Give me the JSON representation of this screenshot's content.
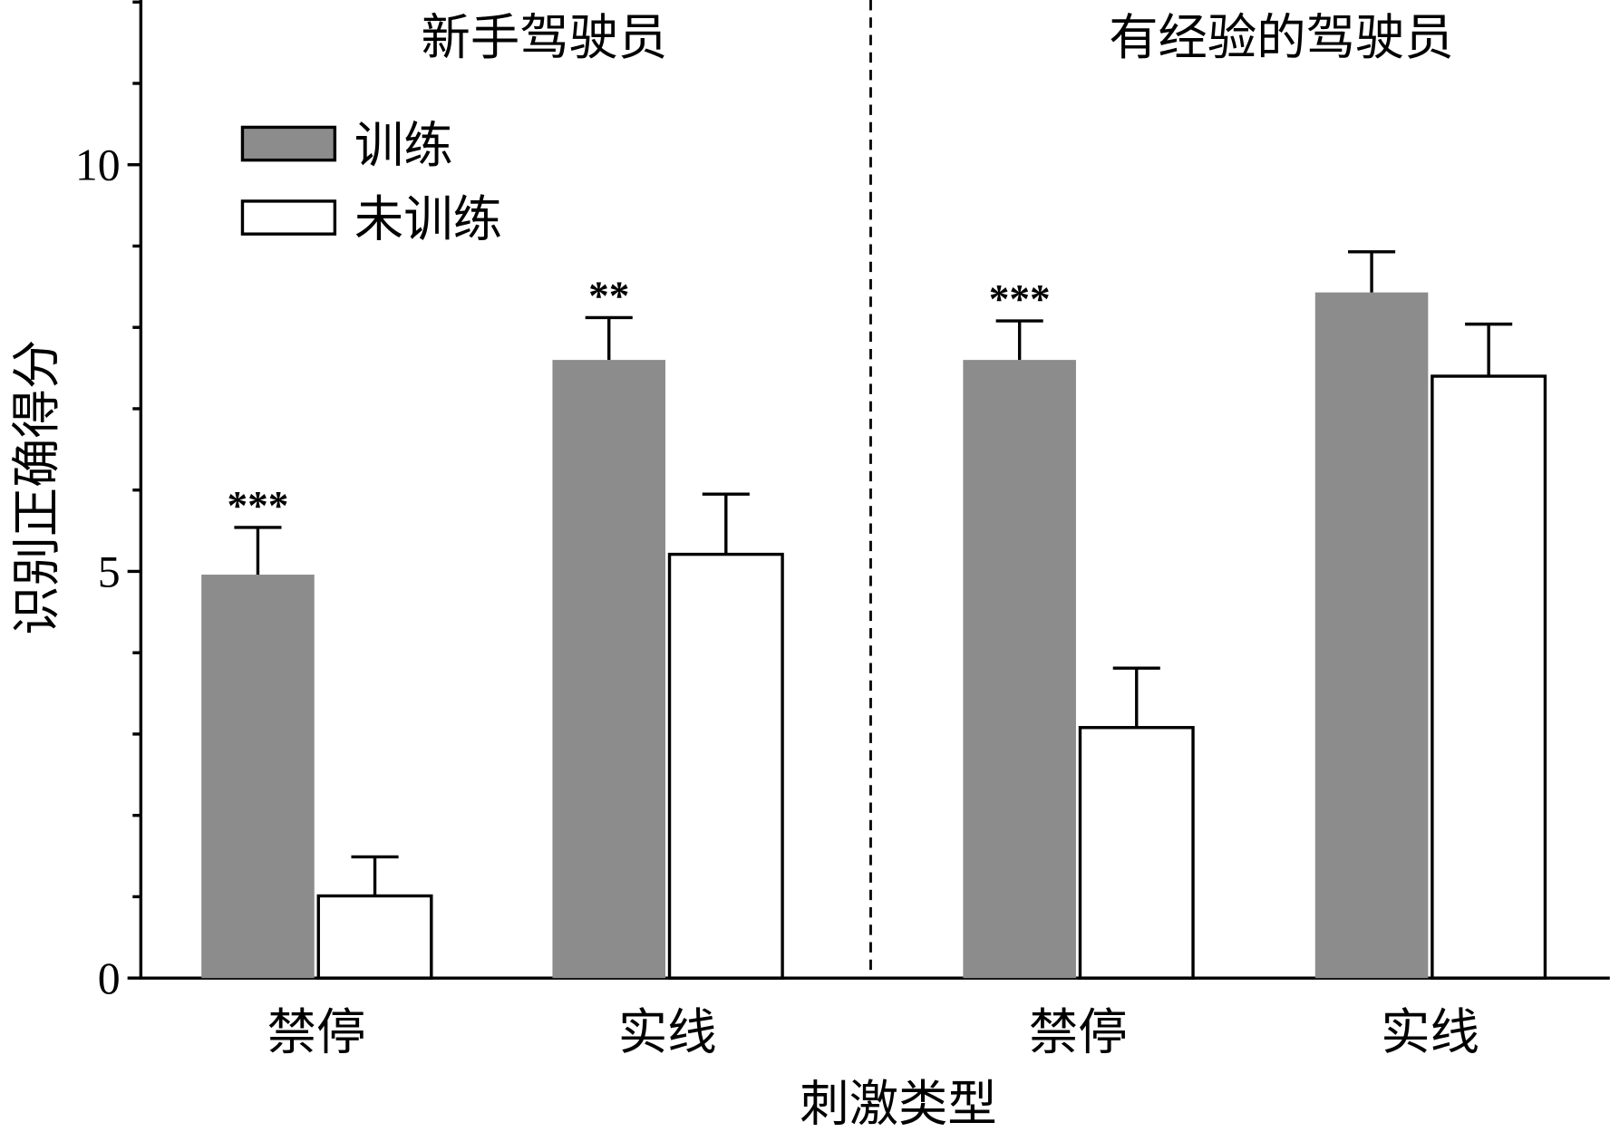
{
  "chart_data": {
    "type": "bar",
    "title": "",
    "xlabel": "刺激类型",
    "ylabel": "识别正确得分",
    "ylim": [
      0,
      12
    ],
    "yticks_major": [
      0,
      5,
      10
    ],
    "yticks_minor_step": 1,
    "grid": false,
    "legend_position": "top-left",
    "colors": {
      "训练": "#8c8c8c",
      "未训练": "#ffffff"
    },
    "groups": [
      {
        "title": "新手驾驶员",
        "categories": [
          "禁停",
          "实线"
        ],
        "series": [
          {
            "name": "训练",
            "values": [
              4.96,
              7.6
            ],
            "errors": [
              0.58,
              0.52
            ]
          },
          {
            "name": "未训练",
            "values": [
              1.01,
              5.21
            ],
            "errors": [
              0.48,
              0.74
            ]
          }
        ],
        "significance": [
          "***",
          "**"
        ]
      },
      {
        "title": "有经验的驾驶员",
        "categories": [
          "禁停",
          "实线"
        ],
        "series": [
          {
            "name": "训练",
            "values": [
              7.6,
              8.43
            ],
            "errors": [
              0.48,
              0.5
            ]
          },
          {
            "name": "未训练",
            "values": [
              3.08,
              7.4
            ],
            "errors": [
              0.73,
              0.64
            ]
          }
        ],
        "significance": [
          "***",
          ""
        ]
      }
    ],
    "legend": [
      "训练",
      "未训练"
    ]
  }
}
